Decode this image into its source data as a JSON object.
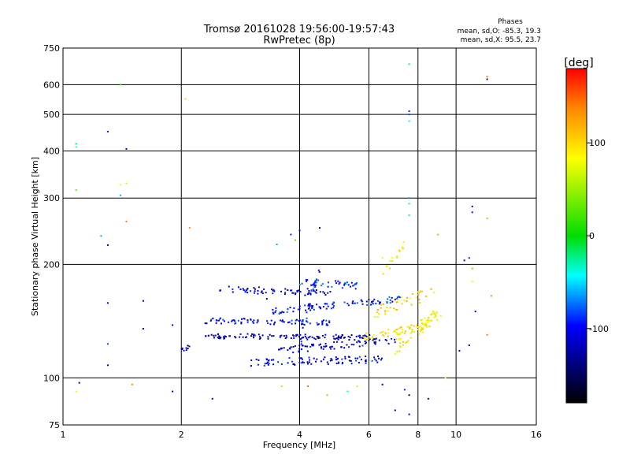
{
  "chart_data": {
    "type": "scatter",
    "title": "Tromsø 20161028 19:56:00-19:57:43",
    "subtitle": "RwPretec (8p)",
    "xlabel": "Frequency [MHz]",
    "ylabel": "Stationary phase Virtual Height [km]",
    "x_scale": "log",
    "y_scale": "log",
    "xlim": [
      1,
      16
    ],
    "ylim": [
      75,
      750
    ],
    "x_ticks": [
      1,
      2,
      4,
      6,
      8,
      10,
      16
    ],
    "y_ticks": [
      75,
      100,
      200,
      300,
      400,
      500,
      600,
      750
    ],
    "grid": true,
    "stats": {
      "heading": "Phases",
      "line_o": "mean, sd,O: -85.3, 19.3",
      "line_x": "mean, sd,X:  95.5, 23.7"
    },
    "colorbar": {
      "label": "[deg]",
      "range": [
        -180,
        180
      ],
      "ticks": [
        100,
        0,
        -100
      ],
      "colors": [
        "#ff0000",
        "#ff8800",
        "#ffff00",
        "#00dd00",
        "#00ffff",
        "#0000ff",
        "#000000"
      ]
    },
    "traces": [
      {
        "x_range": [
          2.5,
          4.8
        ],
        "y": [
          172,
          168
        ],
        "jitter": 3.5,
        "n": 70,
        "phase": -110
      },
      {
        "x_range": [
          4.0,
          5.6
        ],
        "y": [
          180,
          176
        ],
        "jitter": 4,
        "n": 40,
        "phase": -90
      },
      {
        "x_range": [
          3.4,
          7.2
        ],
        "y": [
          150,
          162
        ],
        "jitter": 3,
        "n": 90,
        "phase": -95
      },
      {
        "x_range": [
          2.3,
          5.0
        ],
        "y": [
          142,
          140
        ],
        "jitter": 2.5,
        "n": 80,
        "phase": -100
      },
      {
        "x_range": [
          2.3,
          6.2
        ],
        "y": [
          129,
          128
        ],
        "jitter": 2,
        "n": 120,
        "phase": -115
      },
      {
        "x_range": [
          3.5,
          7.0
        ],
        "y": [
          118,
          126
        ],
        "jitter": 2.5,
        "n": 80,
        "phase": -110
      },
      {
        "x_range": [
          3.0,
          6.5
        ],
        "y": [
          110,
          112
        ],
        "jitter": 2.5,
        "n": 90,
        "phase": -105
      },
      {
        "x_range": [
          5.8,
          8.6
        ],
        "y": [
          128,
          138
        ],
        "jitter": 3,
        "n": 60,
        "phase": 95
      },
      {
        "x_range": [
          7.0,
          9.2
        ],
        "y": [
          120,
          150
        ],
        "jitter": 6,
        "n": 60,
        "phase": 85
      },
      {
        "x_range": [
          6.2,
          8.8
        ],
        "y": [
          150,
          168
        ],
        "jitter": 6,
        "n": 40,
        "phase": 100
      },
      {
        "x_range": [
          6.5,
          7.4
        ],
        "y": [
          185,
          228
        ],
        "jitter": 5,
        "n": 15,
        "phase": 90
      },
      {
        "x_range": [
          4.0,
          4.5
        ],
        "y": [
          120,
          195
        ],
        "jitter": 4,
        "n": 25,
        "phase": -100
      },
      {
        "x_range": [
          2.0,
          2.1
        ],
        "y": [
          118,
          121
        ],
        "jitter": 1.5,
        "n": 10,
        "phase": -120
      }
    ],
    "scatter_points": [
      {
        "x": 1.08,
        "y": 418,
        "phase": -20
      },
      {
        "x": 1.08,
        "y": 410,
        "phase": -40
      },
      {
        "x": 1.3,
        "y": 450,
        "phase": -90
      },
      {
        "x": 1.45,
        "y": 405,
        "phase": -120
      },
      {
        "x": 1.4,
        "y": 600,
        "phase": 20
      },
      {
        "x": 1.08,
        "y": 315,
        "phase": 40
      },
      {
        "x": 1.4,
        "y": 325,
        "phase": 80
      },
      {
        "x": 1.45,
        "y": 328,
        "phase": 70
      },
      {
        "x": 1.4,
        "y": 305,
        "phase": -60
      },
      {
        "x": 1.45,
        "y": 260,
        "phase": 140
      },
      {
        "x": 1.25,
        "y": 238,
        "phase": -60
      },
      {
        "x": 1.3,
        "y": 225,
        "phase": -130
      },
      {
        "x": 1.3,
        "y": 158,
        "phase": -100
      },
      {
        "x": 1.6,
        "y": 160,
        "phase": -120
      },
      {
        "x": 1.3,
        "y": 123,
        "phase": -80
      },
      {
        "x": 1.6,
        "y": 135,
        "phase": -130
      },
      {
        "x": 1.3,
        "y": 108,
        "phase": -120
      },
      {
        "x": 1.9,
        "y": 138,
        "phase": -100
      },
      {
        "x": 1.1,
        "y": 97,
        "phase": -120
      },
      {
        "x": 1.08,
        "y": 92,
        "phase": 90
      },
      {
        "x": 1.5,
        "y": 96,
        "phase": 130
      },
      {
        "x": 1.9,
        "y": 92,
        "phase": -120
      },
      {
        "x": 2.05,
        "y": 550,
        "phase": 100
      },
      {
        "x": 2.1,
        "y": 250,
        "phase": 130
      },
      {
        "x": 2.4,
        "y": 88,
        "phase": -120
      },
      {
        "x": 3.3,
        "y": 162,
        "phase": -150
      },
      {
        "x": 3.6,
        "y": 95,
        "phase": 110
      },
      {
        "x": 4.2,
        "y": 95,
        "phase": 150
      },
      {
        "x": 4.7,
        "y": 90,
        "phase": 120
      },
      {
        "x": 5.3,
        "y": 92,
        "phase": -40
      },
      {
        "x": 5.6,
        "y": 95,
        "phase": 100
      },
      {
        "x": 6.5,
        "y": 96,
        "phase": -120
      },
      {
        "x": 7.4,
        "y": 93,
        "phase": -90
      },
      {
        "x": 7.6,
        "y": 90,
        "phase": -150
      },
      {
        "x": 7.0,
        "y": 82,
        "phase": -130
      },
      {
        "x": 7.6,
        "y": 80,
        "phase": -110
      },
      {
        "x": 3.8,
        "y": 240,
        "phase": -90
      },
      {
        "x": 4.0,
        "y": 246,
        "phase": -100
      },
      {
        "x": 3.9,
        "y": 232,
        "phase": 40
      },
      {
        "x": 3.5,
        "y": 226,
        "phase": -60
      },
      {
        "x": 4.5,
        "y": 250,
        "phase": -130
      },
      {
        "x": 7.6,
        "y": 680,
        "phase": -30
      },
      {
        "x": 7.6,
        "y": 510,
        "phase": -90
      },
      {
        "x": 7.6,
        "y": 500,
        "phase": -80
      },
      {
        "x": 7.6,
        "y": 480,
        "phase": -40
      },
      {
        "x": 7.6,
        "y": 300,
        "phase": -70
      },
      {
        "x": 7.6,
        "y": 290,
        "phase": -40
      },
      {
        "x": 7.6,
        "y": 270,
        "phase": -30
      },
      {
        "x": 12.0,
        "y": 630,
        "phase": 140
      },
      {
        "x": 12.0,
        "y": 620,
        "phase": -140
      },
      {
        "x": 11.0,
        "y": 285,
        "phase": -110
      },
      {
        "x": 11.0,
        "y": 275,
        "phase": -90
      },
      {
        "x": 12.0,
        "y": 265,
        "phase": 120
      },
      {
        "x": 10.5,
        "y": 205,
        "phase": -110
      },
      {
        "x": 10.8,
        "y": 208,
        "phase": -90
      },
      {
        "x": 11.0,
        "y": 195,
        "phase": 40
      },
      {
        "x": 11.0,
        "y": 180,
        "phase": 80
      },
      {
        "x": 12.3,
        "y": 165,
        "phase": 130
      },
      {
        "x": 11.2,
        "y": 150,
        "phase": -110
      },
      {
        "x": 10.2,
        "y": 118,
        "phase": -110
      },
      {
        "x": 10.8,
        "y": 122,
        "phase": -130
      },
      {
        "x": 12.0,
        "y": 130,
        "phase": 140
      },
      {
        "x": 9.0,
        "y": 240,
        "phase": 40
      },
      {
        "x": 6.5,
        "y": 208,
        "phase": 90
      },
      {
        "x": 8.5,
        "y": 88,
        "phase": -120
      },
      {
        "x": 9.4,
        "y": 100,
        "phase": 90
      }
    ]
  }
}
